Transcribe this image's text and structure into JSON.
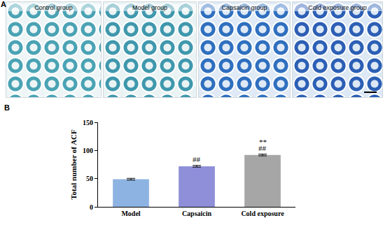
{
  "panel_labels": [
    "A",
    "B"
  ],
  "panel_a": {
    "titles": [
      "Control group",
      "Model group",
      "Capsaicin group",
      "Cold exposure group"
    ]
  },
  "chart_data": {
    "type": "bar",
    "categories": [
      "Model",
      "Capsaicin",
      "Cold exposure"
    ],
    "values": [
      49,
      72,
      92
    ],
    "errors": [
      1.5,
      1.5,
      1.5
    ],
    "colors": [
      "#8db3e2",
      "#8e8fd8",
      "#a6a6a6"
    ],
    "y_label": "Total number of ACF",
    "ylim": [
      0,
      150
    ],
    "yticks": [
      0,
      50,
      100,
      150
    ],
    "grid": false,
    "annotations": [
      {
        "category": "Capsaicin",
        "text": "##"
      },
      {
        "category": "Cold exposure",
        "text": "##"
      },
      {
        "category": "Cold exposure",
        "text": "**"
      }
    ]
  }
}
